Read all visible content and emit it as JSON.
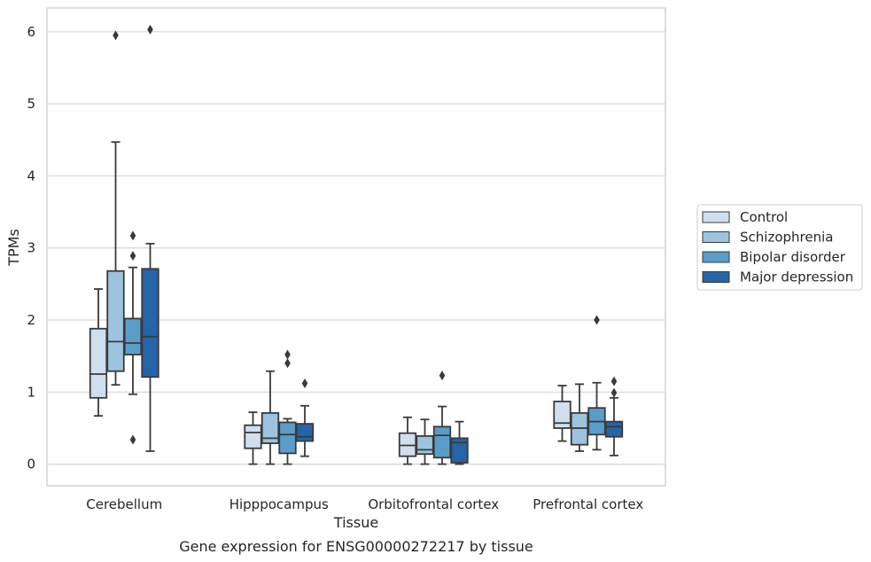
{
  "chart_data": {
    "type": "box",
    "caption": "Gene expression for ENSG00000272217 by tissue",
    "xlabel": "Tissue",
    "ylabel": "TPMs",
    "ylim": [
      -0.3,
      6.33
    ],
    "yticks": [
      0,
      1,
      2,
      3,
      4,
      5,
      6
    ],
    "grid": "horizontal",
    "legend_position": "right",
    "categories": [
      "Cerebellum",
      "Hipppocampus",
      "Orbitofrontal cortex",
      "Prefrontal cortex"
    ],
    "series": [
      {
        "name": "Control",
        "color": "#cfdfee",
        "boxes": [
          {
            "whislo": 0.67,
            "q1": 0.92,
            "med": 1.25,
            "q3": 1.88,
            "whishi": 2.43,
            "fliers": []
          },
          {
            "whislo": 0.0,
            "q1": 0.22,
            "med": 0.44,
            "q3": 0.54,
            "whishi": 0.72,
            "fliers": []
          },
          {
            "whislo": 0.0,
            "q1": 0.11,
            "med": 0.26,
            "q3": 0.43,
            "whishi": 0.65,
            "fliers": []
          },
          {
            "whislo": 0.32,
            "q1": 0.5,
            "med": 0.57,
            "q3": 0.87,
            "whishi": 1.09,
            "fliers": []
          }
        ]
      },
      {
        "name": "Schizophrenia",
        "color": "#9dc4de",
        "boxes": [
          {
            "whislo": 1.1,
            "q1": 1.29,
            "med": 1.7,
            "q3": 2.68,
            "whishi": 4.47,
            "fliers": [
              5.95
            ]
          },
          {
            "whislo": 0.0,
            "q1": 0.29,
            "med": 0.36,
            "q3": 0.71,
            "whishi": 1.29,
            "fliers": []
          },
          {
            "whislo": 0.0,
            "q1": 0.14,
            "med": 0.2,
            "q3": 0.39,
            "whishi": 0.62,
            "fliers": []
          },
          {
            "whislo": 0.18,
            "q1": 0.27,
            "med": 0.5,
            "q3": 0.71,
            "whishi": 1.11,
            "fliers": []
          }
        ]
      },
      {
        "name": "Bipolar disorder",
        "color": "#5b9dc9",
        "boxes": [
          {
            "whislo": 0.97,
            "q1": 1.52,
            "med": 1.68,
            "q3": 2.02,
            "whishi": 2.73,
            "fliers": [
              3.17,
              2.89,
              0.34
            ]
          },
          {
            "whislo": 0.0,
            "q1": 0.15,
            "med": 0.41,
            "q3": 0.58,
            "whishi": 0.63,
            "fliers": [
              1.52,
              1.4
            ]
          },
          {
            "whislo": 0.0,
            "q1": 0.09,
            "med": 0.4,
            "q3": 0.52,
            "whishi": 0.8,
            "fliers": [
              1.23
            ]
          },
          {
            "whislo": 0.2,
            "q1": 0.41,
            "med": 0.59,
            "q3": 0.78,
            "whishi": 1.13,
            "fliers": [
              2.0
            ]
          }
        ]
      },
      {
        "name": "Major depression",
        "color": "#2465a8",
        "boxes": [
          {
            "whislo": 0.18,
            "q1": 1.21,
            "med": 1.77,
            "q3": 2.71,
            "whishi": 3.06,
            "fliers": [
              6.03
            ]
          },
          {
            "whislo": 0.11,
            "q1": 0.32,
            "med": 0.38,
            "q3": 0.56,
            "whishi": 0.81,
            "fliers": [
              1.12
            ]
          },
          {
            "whislo": 0.0,
            "q1": 0.02,
            "med": 0.3,
            "q3": 0.36,
            "whishi": 0.59,
            "fliers": []
          },
          {
            "whislo": 0.12,
            "q1": 0.38,
            "med": 0.52,
            "q3": 0.59,
            "whishi": 0.92,
            "fliers": [
              1.15,
              0.99
            ]
          }
        ]
      }
    ]
  },
  "colors": {
    "edge": "#3a3a3a",
    "grid": "#d5d5d5",
    "frame": "#cccccc"
  }
}
